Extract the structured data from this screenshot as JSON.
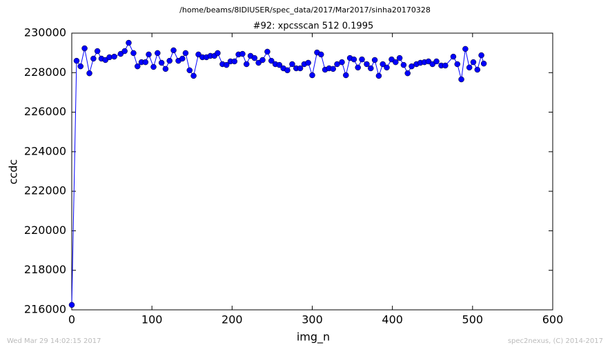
{
  "chart_data": {
    "type": "line",
    "suptitle": "/home/beams/8IDIUSER/spec_data/2017/Mar2017/sinha20170328",
    "title": "#92: xpcsscan 512 0.1995",
    "xlabel": "img_n",
    "ylabel": "ccdc",
    "color": "#0000ff",
    "x": [
      0,
      6,
      11,
      16,
      22,
      27,
      32,
      37,
      42,
      47,
      53,
      61,
      66,
      71,
      77,
      82,
      87,
      92,
      96,
      102,
      107,
      112,
      117,
      122,
      127,
      133,
      138,
      142,
      147,
      152,
      158,
      163,
      168,
      173,
      178,
      182,
      188,
      193,
      198,
      203,
      208,
      213,
      218,
      223,
      228,
      233,
      238,
      244,
      249,
      254,
      259,
      264,
      269,
      275,
      280,
      285,
      290,
      295,
      300,
      306,
      311,
      316,
      321,
      326,
      331,
      337,
      342,
      347,
      352,
      357,
      362,
      368,
      373,
      378,
      383,
      388,
      393,
      399,
      404,
      409,
      414,
      419,
      424,
      430,
      435,
      440,
      445,
      450,
      455,
      461,
      466,
      476,
      481,
      486,
      491,
      496,
      501,
      506,
      511,
      514
    ],
    "values": [
      216250,
      228600,
      228320,
      229230,
      227970,
      228710,
      229090,
      228710,
      228640,
      228780,
      228810,
      228950,
      229090,
      229510,
      228990,
      228320,
      228530,
      228530,
      228920,
      228290,
      228990,
      228500,
      228190,
      228600,
      229130,
      228600,
      228710,
      228990,
      228120,
      227840,
      228920,
      228780,
      228780,
      228850,
      228850,
      228990,
      228430,
      228390,
      228570,
      228570,
      228920,
      228950,
      228430,
      228850,
      228740,
      228500,
      228640,
      229060,
      228600,
      228430,
      228390,
      228220,
      228120,
      228430,
      228220,
      228220,
      228430,
      228500,
      227870,
      229020,
      228920,
      228150,
      228220,
      228190,
      228430,
      228530,
      227870,
      228740,
      228670,
      228260,
      228670,
      228430,
      228220,
      228640,
      227840,
      228430,
      228260,
      228670,
      228530,
      228740,
      228390,
      227970,
      228320,
      228430,
      228500,
      228530,
      228570,
      228430,
      228570,
      228360,
      228360,
      228810,
      228430,
      227660,
      229200,
      228260,
      228530,
      228150,
      228880,
      228460
    ],
    "xlim": [
      0,
      600
    ],
    "xticks": [
      0,
      100,
      200,
      300,
      400,
      500,
      600
    ],
    "ylim": [
      216000,
      230000
    ],
    "yticks": [
      216000,
      218000,
      220000,
      222000,
      224000,
      226000,
      228000,
      230000
    ]
  },
  "footer": {
    "left": "Wed Mar 29 14:02:15 2017",
    "right": "spec2nexus, (C) 2014-2017"
  }
}
